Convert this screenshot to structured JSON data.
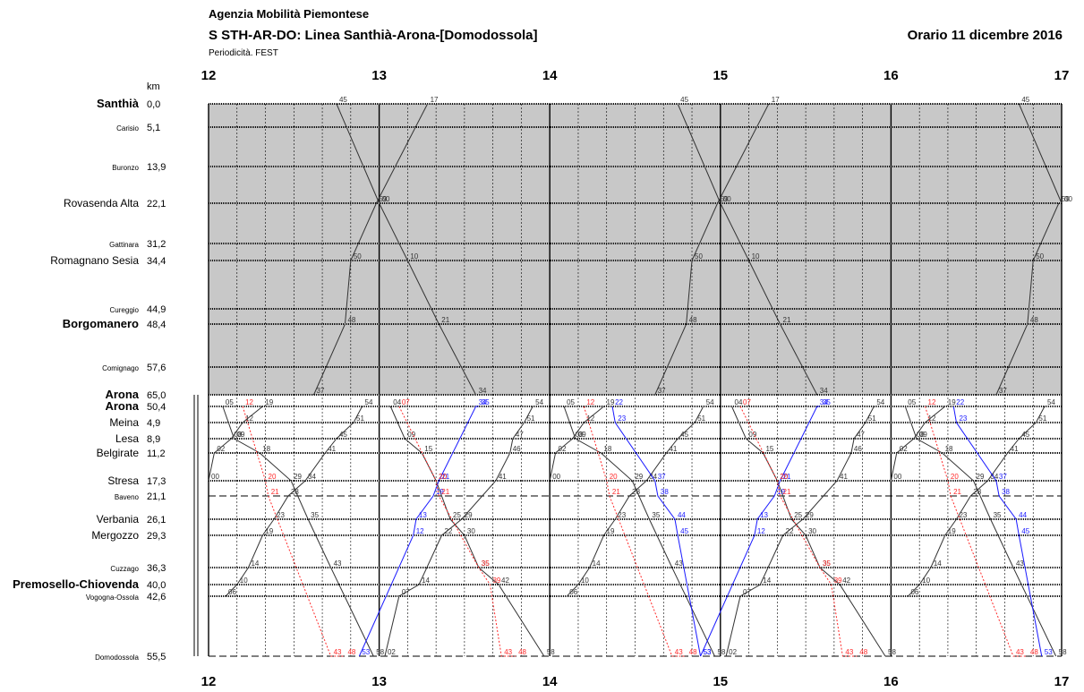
{
  "header": {
    "agency": "Agenzia Mobilità Piemontese",
    "title": "S STH-AR-DO: Linea Santhià-Arona-[Domodossola]",
    "periodicity": "Periodicità. FEST",
    "validity": "Orario 11 dicembre 2016"
  },
  "chart_data": {
    "type": "line",
    "chart_kind": "train timetable graph (time-distance diagram)",
    "x_unit": "hour of day",
    "xlim": [
      "12:00",
      "17:00"
    ],
    "hour_ticks": [
      "12",
      "13",
      "14",
      "15",
      "16",
      "17"
    ],
    "km_header": "km",
    "upper_section": {
      "line": "Santhià-Arona",
      "shaded": true,
      "stations": [
        {
          "name": "Santhià",
          "km": "0,0",
          "major": true
        },
        {
          "name": "Carisio",
          "km": "5,1",
          "major": false
        },
        {
          "name": "Buronzo",
          "km": "13,9",
          "major": false
        },
        {
          "name": "Rovasenda Alta",
          "km": "22,1",
          "major": false
        },
        {
          "name": "Gattinara",
          "km": "31,2",
          "major": false
        },
        {
          "name": "Romagnano Sesia",
          "km": "34,4",
          "major": false
        },
        {
          "name": "Cureggio",
          "km": "44,9",
          "major": false
        },
        {
          "name": "Borgomanero",
          "km": "48,4",
          "major": true
        },
        {
          "name": "Comignago",
          "km": "57,6",
          "major": false
        },
        {
          "name": "Arona",
          "km": "65,0",
          "major": true
        }
      ],
      "series": [
        {
          "name": "",
          "color": "#333333",
          "direction": "northbound",
          "points": [
            [
              "12:37",
              "Arona"
            ],
            [
              "12:48",
              "Borgomanero"
            ],
            [
              "12:50",
              "Romagnano Sesia"
            ],
            [
              "12:59",
              "Rovasenda Alta"
            ],
            [
              "13:17",
              "Santhià"
            ]
          ],
          "labels": [
            "37",
            "38",
            "48",
            "40",
            "58",
            "00",
            "17"
          ]
        },
        {
          "name": "",
          "color": "#333333",
          "direction": "southbound",
          "points": [
            [
              "12:45",
              "Santhià"
            ],
            [
              "13:00",
              "Rovasenda Alta"
            ],
            [
              "13:10",
              "Romagnano Sesia"
            ],
            [
              "13:21",
              "Borgomanero"
            ],
            [
              "13:34",
              "Arona"
            ]
          ],
          "labels": [
            "45",
            "00",
            "01",
            "10",
            "11",
            "21",
            "22"
          ]
        },
        {
          "name": "",
          "color": "#333333",
          "direction": "northbound",
          "points": [
            [
              "14:37",
              "Arona"
            ],
            [
              "14:48",
              "Borgomanero"
            ],
            [
              "14:50",
              "Romagnano Sesia"
            ],
            [
              "14:59",
              "Rovasenda Alta"
            ],
            [
              "15:17",
              "Santhià"
            ]
          ],
          "labels": [
            "37",
            "38",
            "48",
            "40",
            "58",
            "00",
            "17"
          ]
        },
        {
          "name": "",
          "color": "#333333",
          "direction": "southbound",
          "points": [
            [
              "14:45",
              "Santhià"
            ],
            [
              "15:00",
              "Rovasenda Alta"
            ],
            [
              "15:10",
              "Romagnano Sesia"
            ],
            [
              "15:21",
              "Borgomanero"
            ],
            [
              "15:34",
              "Arona"
            ]
          ],
          "labels": [
            "45",
            "00",
            "01",
            "10",
            "11",
            "21",
            "22"
          ]
        },
        {
          "name": "",
          "color": "#333333",
          "direction": "northbound",
          "points": [
            [
              "16:37",
              "Arona"
            ],
            [
              "16:48",
              "Borgomanero"
            ],
            [
              "16:50",
              "Romagnano Sesia"
            ],
            [
              "16:59",
              "Rovasenda Alta"
            ],
            [
              "17:17",
              "Santhià"
            ]
          ],
          "labels": [
            "37",
            "38",
            "48",
            "40",
            "58",
            "00"
          ]
        },
        {
          "name": "",
          "color": "#333333",
          "direction": "southbound",
          "points": [
            [
              "16:45",
              "Santhià"
            ],
            [
              "17:00",
              "Rovasenda Alta"
            ]
          ],
          "labels": [
            "45"
          ]
        }
      ]
    },
    "lower_section": {
      "line": "Arona-Domodossola",
      "shaded": false,
      "stations": [
        {
          "name": "Arona",
          "km": "50,4",
          "major": true
        },
        {
          "name": "Meina",
          "km": "4,9",
          "major": false
        },
        {
          "name": "Lesa",
          "km": "8,9",
          "major": false
        },
        {
          "name": "Belgirate",
          "km": "11,2",
          "major": false
        },
        {
          "name": "Stresa",
          "km": "17,3",
          "major": false
        },
        {
          "name": "Baveno",
          "km": "21,1",
          "major": false
        },
        {
          "name": "Verbania",
          "km": "26,1",
          "major": false
        },
        {
          "name": "Mergozzo",
          "km": "29,3",
          "major": false
        },
        {
          "name": "Cuzzago",
          "km": "36,3",
          "major": false
        },
        {
          "name": "Premosello-Chiovenda",
          "km": "40,0",
          "major": true
        },
        {
          "name": "Vogogna-Ossola",
          "km": "42,6",
          "major": false
        },
        {
          "name": "Domodossola",
          "km": "55,5",
          "major": false
        }
      ],
      "series": [
        {
          "name": "",
          "color": "#333333",
          "style": "solid",
          "pattern": "every 2 hours from 12:00",
          "points": [
            [
              "12:06",
              "Vogogna-Ossola"
            ],
            [
              "12:10",
              "Premosello-Chiovenda"
            ],
            [
              "12:14",
              "Cuzzago"
            ],
            [
              "12:19",
              "Mergozzo"
            ],
            [
              "12:23",
              "Verbania"
            ],
            [
              "12:28",
              "Baveno"
            ],
            [
              "12:34",
              "Stresa"
            ],
            [
              "12:41",
              "Belgirate"
            ],
            [
              "12:45",
              "Lesa"
            ],
            [
              "12:51",
              "Meina"
            ],
            [
              "12:54",
              "Arona"
            ]
          ]
        },
        {
          "name": "",
          "color": "#333333",
          "style": "solid",
          "pattern": "every 2 hours from 12:00",
          "points": [
            [
              "12:00",
              "Stresa"
            ],
            [
              "12:02",
              "Belgirate"
            ],
            [
              "12:08",
              "Lesa"
            ],
            [
              "12:12",
              "Meina"
            ],
            [
              "12:19",
              "Arona"
            ]
          ]
        },
        {
          "name": "",
          "color": "#333333",
          "style": "solid",
          "pattern": "every 2 hours from 12:00",
          "points": [
            [
              "12:05",
              "Arona"
            ],
            [
              "12:09",
              "Lesa"
            ],
            [
              "12:18",
              "Belgirate"
            ],
            [
              "12:29",
              "Stresa"
            ],
            [
              "12:35",
              "Verbania"
            ],
            [
              "12:43",
              "Cuzzago"
            ],
            [
              "12:58",
              "Domodossola"
            ]
          ]
        },
        {
          "name": "",
          "color": "#333333",
          "style": "solid",
          "pattern": "every 2 hours from 13:00",
          "points": [
            [
              "13:04",
              "Arona"
            ],
            [
              "13:09",
              "Lesa"
            ],
            [
              "13:15",
              "Belgirate"
            ],
            [
              "13:20",
              "Stresa"
            ],
            [
              "13:25",
              "Verbania"
            ],
            [
              "13:30",
              "Mergozzo"
            ],
            [
              "13:35",
              "Cuzzago"
            ],
            [
              "13:42",
              "Premosello-Chiovenda"
            ],
            [
              "13:58",
              "Domodossola"
            ]
          ]
        },
        {
          "name": "",
          "color": "#333333",
          "style": "solid",
          "pattern": "every 2 hours from 13:00",
          "points": [
            [
              "13:02",
              "Domodossola"
            ],
            [
              "13:07",
              "Vogogna-Ossola"
            ],
            [
              "13:14",
              "Premosello-Chiovenda"
            ],
            [
              "13:22",
              "Mergozzo"
            ],
            [
              "13:29",
              "Verbania"
            ],
            [
              "13:41",
              "Stresa"
            ],
            [
              "13:46",
              "Belgirate"
            ],
            [
              "13:47",
              "Lesa"
            ],
            [
              "13:51",
              "Meina"
            ],
            [
              "13:54",
              "Arona"
            ]
          ]
        },
        {
          "name": "",
          "color": "#1a1aff",
          "style": "solid",
          "pattern": "every 2 hours from 12:50",
          "points": [
            [
              "12:53",
              "Domodossola"
            ],
            [
              "13:12",
              "Mergozzo"
            ],
            [
              "13:13",
              "Verbania"
            ],
            [
              "13:19",
              "Baveno"
            ],
            [
              "13:21",
              "Stresa"
            ],
            [
              "13:34",
              "Arona"
            ],
            [
              "13:35",
              "Arona"
            ]
          ]
        },
        {
          "name": "",
          "color": "#1a1aff",
          "style": "solid",
          "pattern": "every 2 hours from 14:20",
          "points": [
            [
              "14:22",
              "Arona"
            ],
            [
              "14:23",
              "Meina"
            ],
            [
              "14:37",
              "Stresa"
            ],
            [
              "14:38",
              "Baveno"
            ],
            [
              "14:44",
              "Verbania"
            ],
            [
              "14:45",
              "Mergozzo"
            ],
            [
              "14:53",
              "Domodossola"
            ]
          ]
        },
        {
          "name": "",
          "color": "#ff2a2a",
          "style": "dotted",
          "pattern": "every 2 hours from 12:10",
          "points": [
            [
              "12:12",
              "Arona"
            ],
            [
              "12:20",
              "Stresa"
            ],
            [
              "12:21",
              "Baveno"
            ],
            [
              "12:43",
              "Domodossola"
            ],
            [
              "12:48",
              "Domodossola"
            ]
          ]
        },
        {
          "name": "",
          "color": "#ff2a2a",
          "style": "dotted",
          "pattern": "every 2 hours from 13:05",
          "points": [
            [
              "13:07",
              "Arona"
            ],
            [
              "13:20",
              "Stresa"
            ],
            [
              "13:21",
              "Baveno"
            ],
            [
              "13:35",
              "Cuzzago"
            ],
            [
              "13:39",
              "Premosello-Chiovenda"
            ],
            [
              "13:43",
              "Domodossola"
            ],
            [
              "13:48",
              "Domodossola"
            ]
          ]
        }
      ]
    }
  }
}
